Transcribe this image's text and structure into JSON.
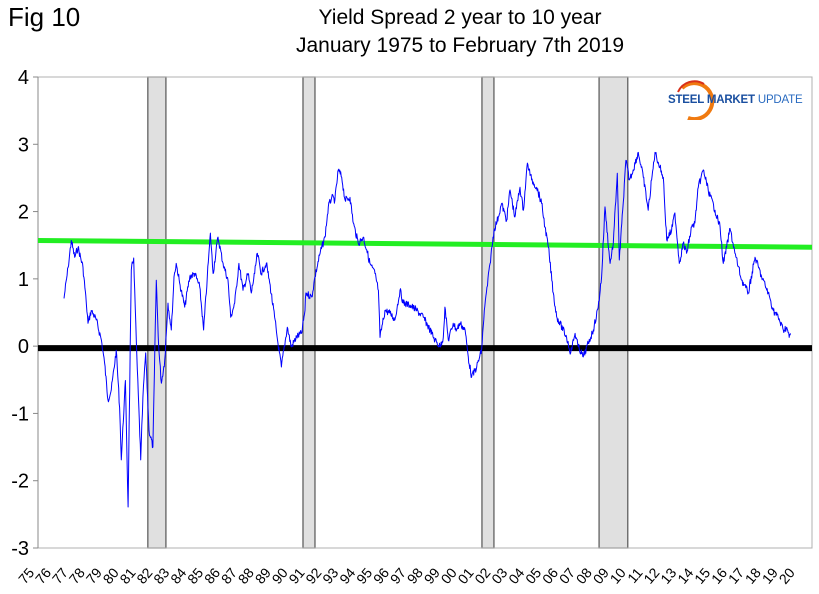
{
  "figure_label": "Fig 10",
  "logo_text": {
    "part1": "STEEL MARKET",
    "part2": "UPDATE"
  },
  "chart_data": {
    "type": "line",
    "title": "Yield Spread 2 year to 10 year",
    "subtitle": "January 1975 to February 7th 2019",
    "xlabel": "",
    "ylabel": "",
    "xlim": [
      1975,
      2020.8
    ],
    "ylim": [
      -3,
      4
    ],
    "yticks": [
      "4",
      "3",
      "2",
      "1",
      "0",
      "-1",
      "-2",
      "-3"
    ],
    "xtick_labels": [
      "75",
      "76",
      "77",
      "78",
      "79",
      "80",
      "81",
      "82",
      "83",
      "84",
      "85",
      "86",
      "87",
      "88",
      "89",
      "90",
      "91",
      "92",
      "93",
      "94",
      "95",
      "96",
      "97",
      "98",
      "99",
      "00",
      "01",
      "02",
      "03",
      "04",
      "05",
      "06",
      "07",
      "08",
      "09",
      "10",
      "11",
      "12",
      "13",
      "14",
      "15",
      "16",
      "17",
      "18",
      "19",
      "20"
    ],
    "colors": {
      "series": "#0000ff",
      "trend": "#22ee22",
      "zero": "#000000",
      "recession": "#e0e0e0"
    },
    "recessions": [
      [
        1981.5,
        1982.57
      ],
      [
        1990.68,
        1991.39
      ],
      [
        2001.27,
        2001.98
      ],
      [
        2008.2,
        2009.9
      ]
    ],
    "trend_line": {
      "x": [
        1975,
        2020.8
      ],
      "y": [
        1.57,
        1.47
      ]
    },
    "zero_line": -0.03,
    "series": [
      {
        "name": "2-10 Yield Spread",
        "x": [
          1976.54,
          1976.78,
          1976.97,
          1977.17,
          1977.37,
          1977.66,
          1977.86,
          1977.96,
          1978.15,
          1978.45,
          1978.75,
          1978.94,
          1979.14,
          1979.34,
          1979.63,
          1979.83,
          1979.93,
          1980.17,
          1980.33,
          1980.52,
          1980.66,
          1980.82,
          1981.08,
          1981.21,
          1981.37,
          1981.57,
          1981.8,
          1982.0,
          1982.14,
          1982.3,
          1982.5,
          1982.69,
          1982.89,
          1983.05,
          1983.18,
          1983.38,
          1983.68,
          1983.98,
          1984.27,
          1984.57,
          1984.8,
          1985.02,
          1985.2,
          1985.36,
          1985.65,
          1985.95,
          1986.24,
          1986.4,
          1986.64,
          1986.89,
          1987.13,
          1987.43,
          1987.62,
          1987.82,
          1987.98,
          1988.21,
          1988.51,
          1988.71,
          1989.0,
          1989.2,
          1989.4,
          1989.75,
          1989.99,
          1990.31,
          1990.6,
          1990.8,
          1990.85,
          1991.2,
          1991.39,
          1991.69,
          1991.98,
          1992.18,
          1992.38,
          1992.57,
          1992.77,
          1992.97,
          1993.17,
          1993.46,
          1993.66,
          1993.95,
          1994.25,
          1994.45,
          1994.64,
          1994.94,
          1995.14,
          1995.24,
          1995.53,
          1995.83,
          1996.12,
          1996.42,
          1996.62,
          1997.01,
          1997.41,
          1997.8,
          1998.2,
          1998.49,
          1998.79,
          1998.98,
          1999.08,
          1999.28,
          1999.57,
          1999.77,
          1999.97,
          2000.27,
          2000.46,
          2000.66,
          2000.96,
          2001.25,
          2001.41,
          2001.75,
          2001.98,
          2002.24,
          2002.43,
          2002.73,
          2002.93,
          2003.22,
          2003.52,
          2003.72,
          2003.96,
          2004.21,
          2004.51,
          2004.8,
          2005.0,
          2005.2,
          2005.49,
          2005.69,
          2005.89,
          2006.28,
          2006.52,
          2006.78,
          2006.97,
          2007.27,
          2007.56,
          2007.86,
          2008.15,
          2008.35,
          2008.55,
          2008.85,
          2009.04,
          2009.28,
          2009.4,
          2009.6,
          2009.79,
          2009.99,
          2010.22,
          2010.52,
          2010.82,
          2011.11,
          2011.31,
          2011.51,
          2011.8,
          2012.0,
          2012.2,
          2012.49,
          2012.69,
          2012.95,
          2013.18,
          2013.38,
          2013.68,
          2013.87,
          2014.07,
          2014.37,
          2014.66,
          2015.06,
          2015.36,
          2015.55,
          2015.75,
          2015.95,
          2016.24,
          2016.64,
          2017.03,
          2017.43,
          2017.82,
          2018.21,
          2018.51,
          2018.8,
          2019.1,
          2019.3,
          2019.45,
          2019.53
        ],
        "y": [
          0.71,
          1.17,
          1.57,
          1.32,
          1.47,
          1.17,
          0.64,
          0.34,
          0.53,
          0.39,
          0.09,
          -0.25,
          -0.8,
          -0.65,
          -0.06,
          -0.91,
          -1.69,
          -0.51,
          -2.39,
          1.13,
          1.31,
          0.04,
          -1.69,
          -0.76,
          -0.1,
          -1.25,
          -1.5,
          0.98,
          -0.01,
          -0.55,
          -0.21,
          0.64,
          0.24,
          1.03,
          1.23,
          0.94,
          0.58,
          1.03,
          1.08,
          0.88,
          0.24,
          1.03,
          1.68,
          1.08,
          1.62,
          1.23,
          0.98,
          0.43,
          0.64,
          1.23,
          0.83,
          1.08,
          0.79,
          1.08,
          1.38,
          1.08,
          1.23,
          0.94,
          0.43,
          0.04,
          -0.31,
          0.28,
          -0.01,
          0.14,
          0.19,
          0.53,
          0.79,
          0.73,
          1.03,
          1.38,
          1.62,
          2.07,
          2.21,
          2.17,
          2.62,
          2.51,
          2.17,
          2.21,
          1.83,
          1.53,
          1.62,
          1.43,
          1.23,
          1.08,
          0.83,
          0.13,
          0.53,
          0.49,
          0.39,
          0.83,
          0.64,
          0.61,
          0.53,
          0.43,
          0.24,
          0.09,
          -0.01,
          0.13,
          0.58,
          0.09,
          0.34,
          0.24,
          0.34,
          0.24,
          -0.16,
          -0.46,
          -0.31,
          -0.06,
          0.53,
          1.23,
          1.72,
          1.92,
          2.12,
          1.87,
          2.32,
          1.92,
          2.36,
          2.02,
          2.72,
          2.47,
          2.36,
          2.12,
          1.77,
          1.47,
          0.79,
          0.44,
          0.34,
          0.13,
          -0.1,
          0.19,
          -0.01,
          -0.16,
          0.04,
          0.24,
          0.58,
          1.03,
          2.07,
          1.23,
          1.53,
          2.57,
          1.28,
          2.02,
          2.76,
          2.47,
          2.62,
          2.88,
          2.51,
          2.02,
          2.47,
          2.88,
          2.66,
          2.51,
          1.58,
          1.72,
          1.98,
          1.23,
          1.53,
          1.38,
          1.77,
          1.83,
          2.36,
          2.62,
          2.32,
          2.02,
          1.77,
          1.23,
          1.47,
          1.75,
          1.38,
          0.98,
          0.79,
          1.32,
          1.03,
          0.79,
          0.53,
          0.43,
          0.24,
          0.28,
          0.13,
          0.19
        ]
      }
    ]
  }
}
